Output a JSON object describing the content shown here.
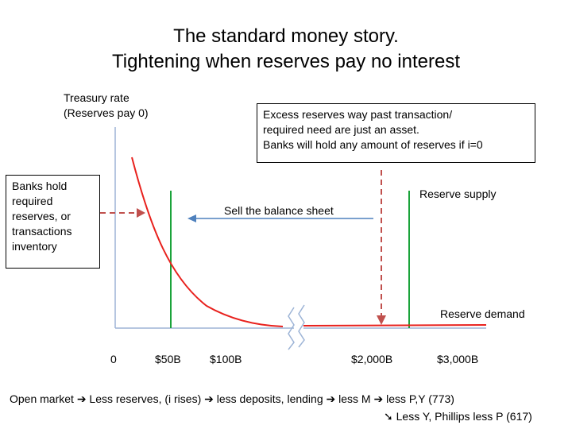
{
  "title": {
    "line1": "The standard money story.",
    "line2": "Tightening when reserves pay no interest"
  },
  "axis": {
    "y_label_line1": "Treasury rate",
    "y_label_line2": "(Reserves pay 0)",
    "ticks": [
      "0",
      "$50B",
      "$100B",
      "$2,000B",
      "$3,000B"
    ]
  },
  "left_box": {
    "lines": [
      "Banks hold",
      "required",
      "reserves, or",
      "transactions",
      "inventory"
    ]
  },
  "right_box": {
    "lines": [
      "Excess reserves way past transaction/",
      "required need are just an asset.",
      "Banks will hold any amount of reserves if i=0"
    ]
  },
  "labels": {
    "sell": "Sell the balance sheet",
    "reserve_supply": "Reserve supply",
    "reserve_demand": "Reserve demand"
  },
  "footer": {
    "line1": "Open market ➔ Less reserves, (i rises) ➔  less deposits, lending ➔ less M ➔ less P,Y (773)",
    "line2": "➘ Less Y, Phillips less P (617)"
  },
  "colors": {
    "axis": "#9db4d6",
    "demand_curve": "#e8211d",
    "supply_line": "#1aa33a",
    "dashed_arrow": "#c0504d",
    "sell_arrow": "#4f81bd"
  }
}
